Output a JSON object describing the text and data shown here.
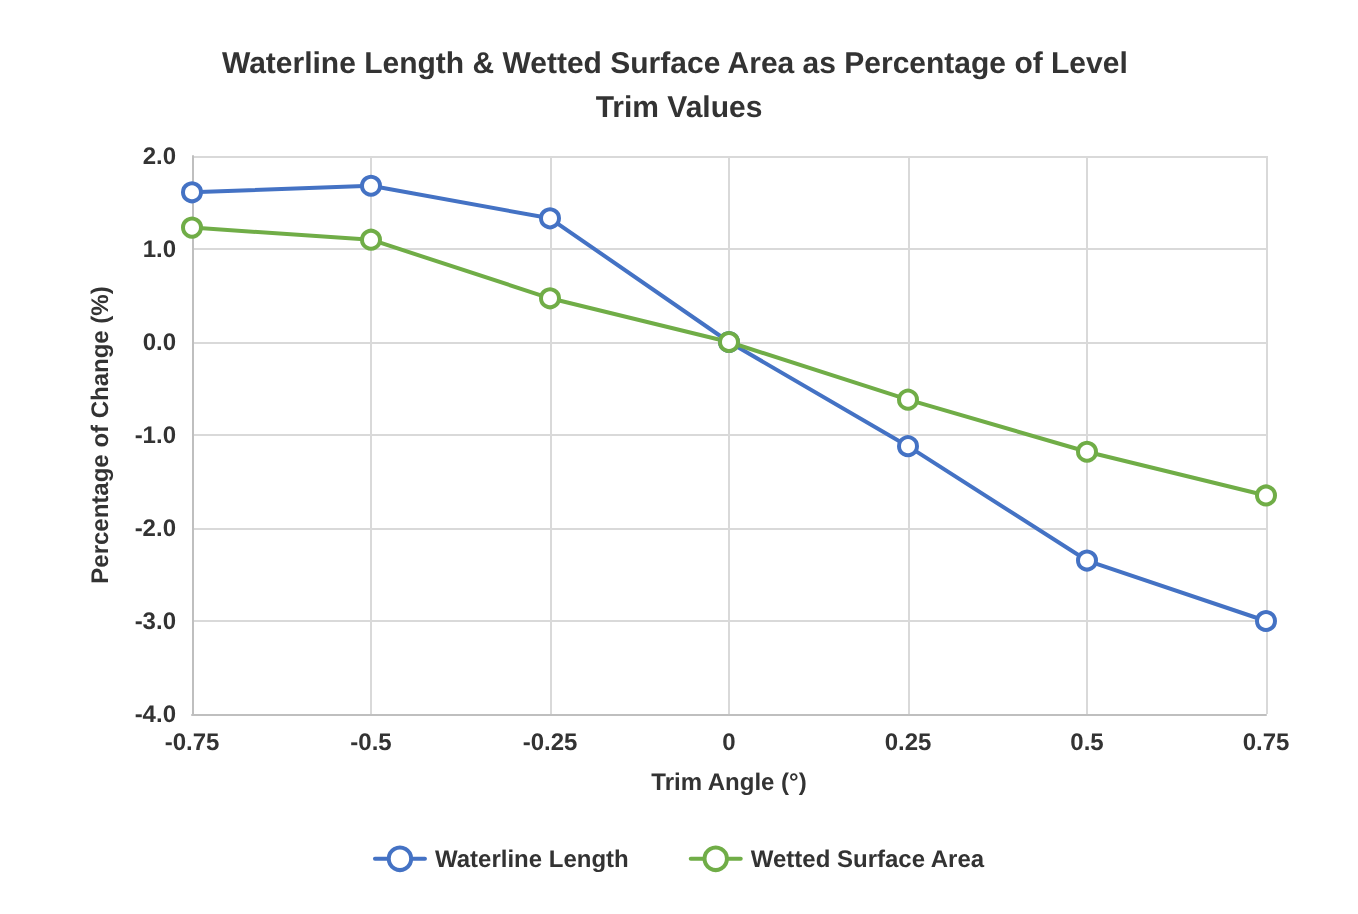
{
  "chart_data": {
    "type": "line",
    "title": "Waterline Length & Wetted Surface Area as Percentage of Level Trim Values",
    "xlabel": "Trim Angle (°)",
    "ylabel": "Percentage of Change (%)",
    "x": [
      -0.75,
      -0.5,
      -0.25,
      0,
      0.25,
      0.5,
      0.75
    ],
    "series": [
      {
        "name": "Waterline Length",
        "color": "#4472c4",
        "values": [
          1.61,
          1.68,
          1.33,
          0,
          -1.12,
          -2.35,
          -3.0
        ]
      },
      {
        "name": "Wetted Surface Area",
        "color": "#70ad47",
        "values": [
          1.23,
          1.1,
          0.47,
          0,
          -0.62,
          -1.18,
          -1.65
        ]
      }
    ],
    "xlim": [
      -0.75,
      0.75
    ],
    "xticks": [
      -0.75,
      -0.5,
      -0.25,
      0,
      0.25,
      0.5,
      0.75
    ],
    "ylim": [
      -4,
      2
    ],
    "yticks": [
      {
        "value": -4,
        "label": "-4.0"
      },
      {
        "value": -3,
        "label": "-3.0"
      },
      {
        "value": -2,
        "label": "-2.0"
      },
      {
        "value": -1,
        "label": "-1.0"
      },
      {
        "value": 0,
        "label": "0.0"
      },
      {
        "value": 1,
        "label": "1.0"
      },
      {
        "value": 2,
        "label": "2.0"
      }
    ],
    "grid": true,
    "legend": "bottom",
    "marker": "circle",
    "line_style": "solid"
  }
}
